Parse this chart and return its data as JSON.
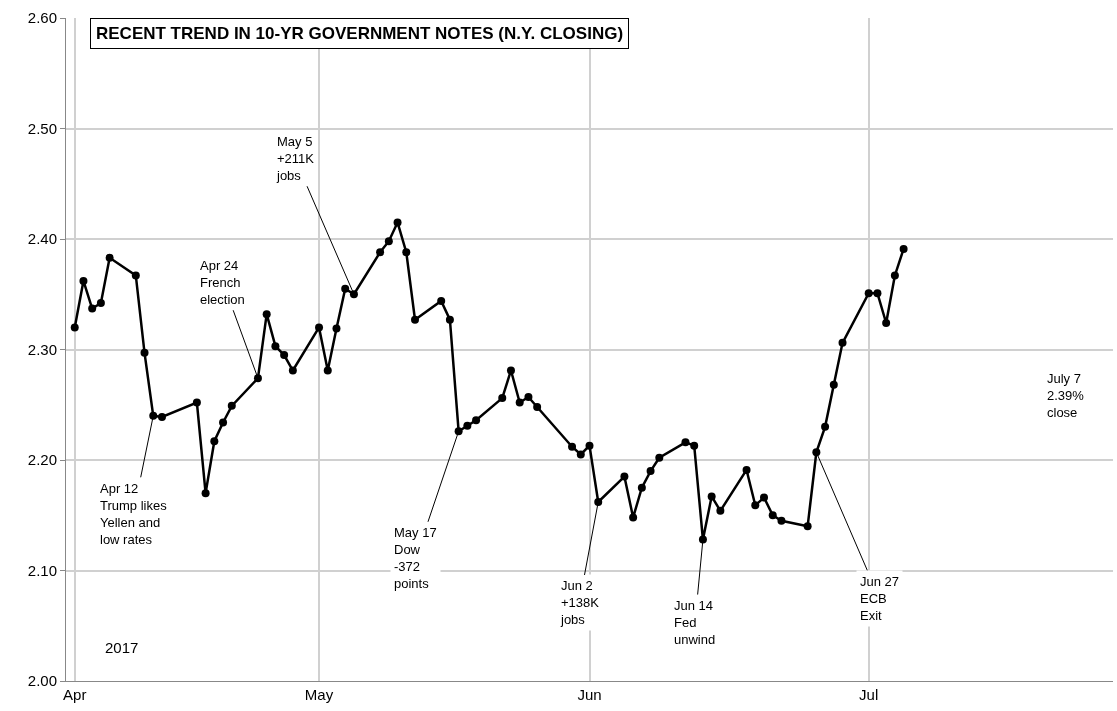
{
  "chart_data": {
    "type": "line",
    "title": "RECENT TREND IN 10-YR GOVERNMENT NOTES (N.Y. CLOSING)",
    "x": [
      "2017-04-03",
      "2017-04-04",
      "2017-04-05",
      "2017-04-06",
      "2017-04-07",
      "2017-04-10",
      "2017-04-11",
      "2017-04-12",
      "2017-04-13",
      "2017-04-17",
      "2017-04-18",
      "2017-04-19",
      "2017-04-20",
      "2017-04-21",
      "2017-04-24",
      "2017-04-25",
      "2017-04-26",
      "2017-04-27",
      "2017-04-28",
      "2017-05-01",
      "2017-05-02",
      "2017-05-03",
      "2017-05-04",
      "2017-05-05",
      "2017-05-08",
      "2017-05-09",
      "2017-05-10",
      "2017-05-11",
      "2017-05-12",
      "2017-05-15",
      "2017-05-16",
      "2017-05-17",
      "2017-05-18",
      "2017-05-19",
      "2017-05-22",
      "2017-05-23",
      "2017-05-24",
      "2017-05-25",
      "2017-05-26",
      "2017-05-30",
      "2017-05-31",
      "2017-06-01",
      "2017-06-02",
      "2017-06-05",
      "2017-06-06",
      "2017-06-07",
      "2017-06-08",
      "2017-06-09",
      "2017-06-12",
      "2017-06-13",
      "2017-06-14",
      "2017-06-15",
      "2017-06-16",
      "2017-06-19",
      "2017-06-20",
      "2017-06-21",
      "2017-06-22",
      "2017-06-23",
      "2017-06-26",
      "2017-06-27",
      "2017-06-28",
      "2017-06-29",
      "2017-06-30",
      "2017-07-03",
      "2017-07-04",
      "2017-07-05",
      "2017-07-06",
      "2017-07-07"
    ],
    "series": [
      {
        "color": "#000000",
        "values": [
          2.32,
          2.362,
          2.337,
          2.342,
          2.383,
          2.367,
          2.297,
          2.24,
          2.239,
          2.252,
          2.17,
          2.217,
          2.234,
          2.249,
          2.274,
          2.332,
          2.303,
          2.295,
          2.281,
          2.32,
          2.281,
          2.319,
          2.355,
          2.35,
          2.388,
          2.398,
          2.415,
          2.388,
          2.327,
          2.344,
          2.327,
          2.226,
          2.231,
          2.236,
          2.256,
          2.281,
          2.252,
          2.257,
          2.248,
          2.212,
          2.205,
          2.213,
          2.162,
          2.185,
          2.148,
          2.175,
          2.19,
          2.202,
          2.216,
          2.213,
          2.128,
          2.167,
          2.154,
          2.191,
          2.159,
          2.166,
          2.15,
          2.145,
          2.14,
          2.207,
          2.23,
          2.268,
          2.306,
          2.351,
          2.351,
          2.324,
          2.367,
          2.391
        ]
      }
    ],
    "xlim": [
      "2017-04-02",
      "2017-07-31"
    ],
    "xticks": [
      {
        "value": "2017-04-03",
        "label": "Apr"
      },
      {
        "value": "2017-05-01",
        "label": "May"
      },
      {
        "value": "2017-06-01",
        "label": "Jun"
      },
      {
        "value": "2017-07-03",
        "label": "Jul"
      }
    ],
    "ylim": [
      2.0,
      2.6
    ],
    "yticks": [
      {
        "value": 2.0,
        "label": "2.00"
      },
      {
        "value": 2.1,
        "label": "2.10"
      },
      {
        "value": 2.2,
        "label": "2.20"
      },
      {
        "value": 2.3,
        "label": "2.30"
      },
      {
        "value": 2.4,
        "label": "2.40"
      },
      {
        "value": 2.5,
        "label": "2.50"
      },
      {
        "value": 2.6,
        "label": "2.60"
      }
    ],
    "grid": true,
    "marker": "circle",
    "line_style": "solid",
    "annotations": [
      {
        "text": "Apr 12\nTrump likes\nYellen and\nlow rates",
        "x": "2017-04-12",
        "y": 2.24
      },
      {
        "text": "Apr 24\nFrench\nelection",
        "x": "2017-04-24",
        "y": 2.274
      },
      {
        "text": "May 5\n+211K\njobs",
        "x": "2017-05-05",
        "y": 2.35
      },
      {
        "text": "May 17\nDow\n-372\npoints",
        "x": "2017-05-17",
        "y": 2.226
      },
      {
        "text": "Jun 2\n+138K\njobs",
        "x": "2017-06-02",
        "y": 2.162
      },
      {
        "text": "Jun 14\nFed\nunwind",
        "x": "2017-06-14",
        "y": 2.128
      },
      {
        "text": "Jun 27\nECB\nExit",
        "x": "2017-06-27",
        "y": 2.207
      },
      "July 7\n2.39%\nclose",
      "2017"
    ]
  }
}
